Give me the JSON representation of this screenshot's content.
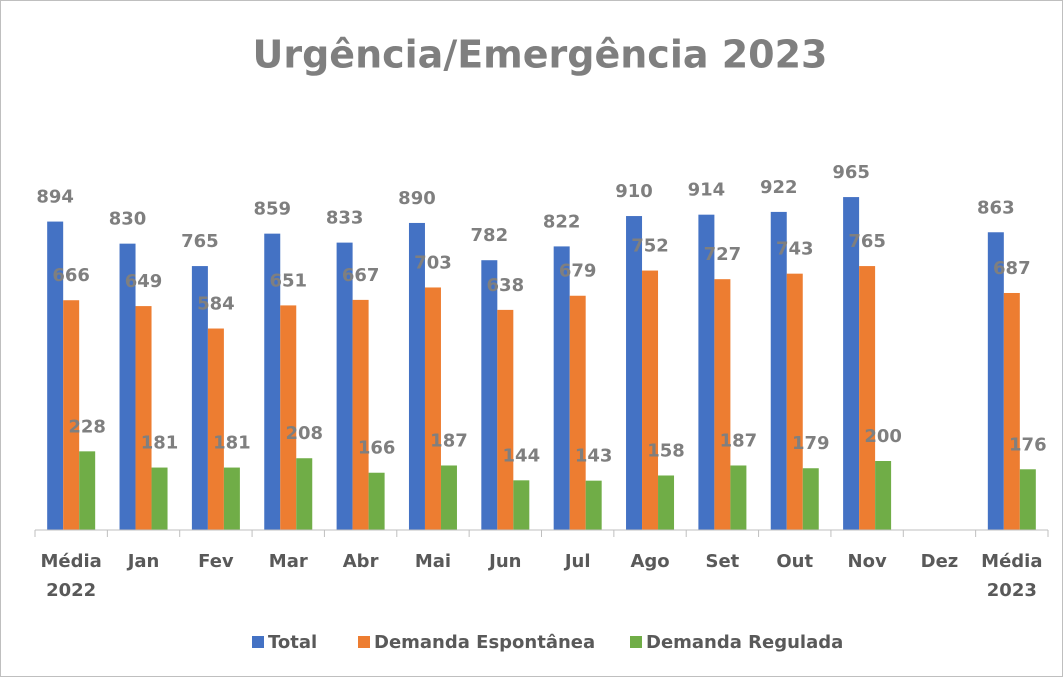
{
  "chart_data": {
    "type": "bar",
    "title": "Urgência/Emergência 2023",
    "categories": [
      "Média 2022",
      "Jan",
      "Fev",
      "Mar",
      "Abr",
      "Mai",
      "Jun",
      "Jul",
      "Ago",
      "Set",
      "Out",
      "Nov",
      "Dez",
      "Média 2023"
    ],
    "series": [
      {
        "name": "Total",
        "color": "#4472c4",
        "values": [
          894,
          830,
          765,
          859,
          833,
          890,
          782,
          822,
          910,
          914,
          922,
          965,
          null,
          863
        ]
      },
      {
        "name": "Demanda Espontânea",
        "color": "#ed7d31",
        "values": [
          666,
          649,
          584,
          651,
          667,
          703,
          638,
          679,
          752,
          727,
          743,
          765,
          null,
          687
        ]
      },
      {
        "name": "Demanda Regulada",
        "color": "#70ad47",
        "values": [
          228,
          181,
          181,
          208,
          166,
          187,
          144,
          143,
          158,
          187,
          179,
          200,
          null,
          176
        ]
      }
    ],
    "ylim": [
      0,
      1000
    ],
    "legend": "bottom"
  }
}
